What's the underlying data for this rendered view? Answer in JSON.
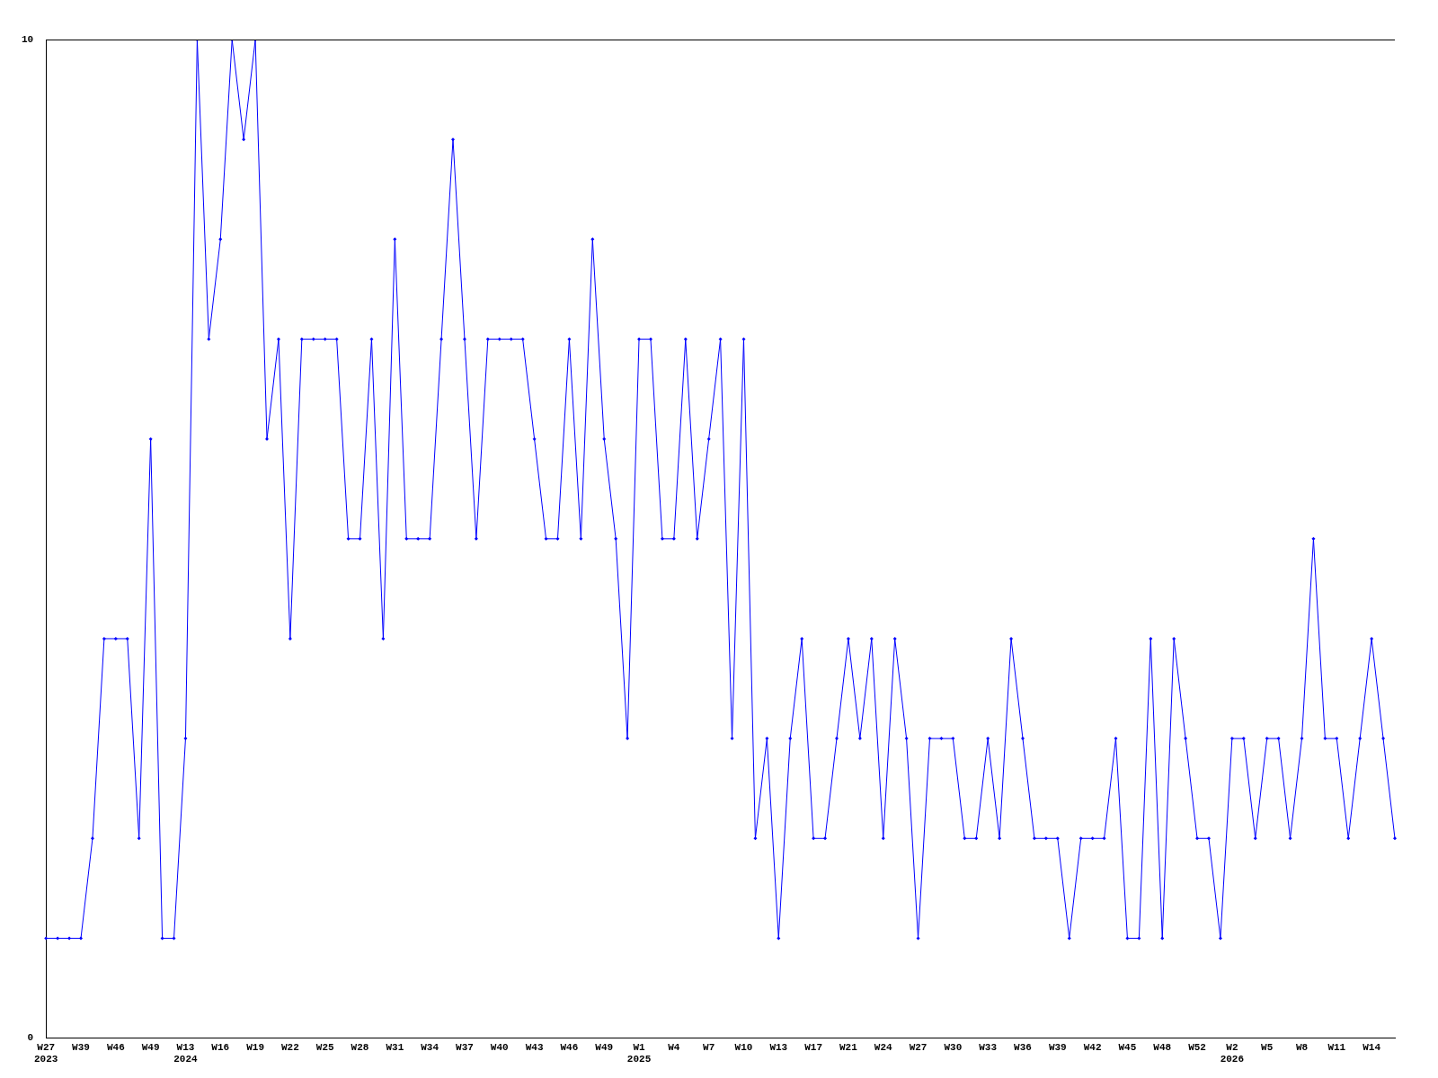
{
  "chart_data": {
    "type": "line",
    "categories": [
      "W27\n2023",
      null,
      null,
      "W39",
      null,
      null,
      "W46",
      null,
      null,
      "W49",
      null,
      null,
      "W13\n2024",
      null,
      null,
      "W16",
      null,
      null,
      "W19",
      null,
      null,
      "W22",
      null,
      null,
      "W25",
      null,
      null,
      "W28",
      null,
      null,
      "W31",
      null,
      null,
      "W34",
      null,
      null,
      "W37",
      null,
      null,
      "W40",
      null,
      null,
      "W43",
      null,
      null,
      "W46",
      null,
      null,
      "W49",
      null,
      null,
      "W1\n2025",
      null,
      null,
      "W4",
      null,
      null,
      "W7",
      null,
      null,
      "W10",
      null,
      null,
      "W13",
      null,
      null,
      "W17",
      null,
      null,
      "W21",
      null,
      null,
      "W24",
      null,
      null,
      "W27",
      null,
      null,
      "W30",
      null,
      null,
      "W33",
      null,
      null,
      "W36",
      null,
      null,
      "W39",
      null,
      null,
      "W42",
      null,
      null,
      "W45",
      null,
      null,
      "W48",
      null,
      null,
      "W52",
      null,
      null,
      "W2\n2026",
      null,
      null,
      "W5",
      null,
      null,
      "W8",
      null,
      null,
      "W11",
      null,
      null,
      "W14",
      null,
      null
    ],
    "series": [
      {
        "color": "#0000ff",
        "values": [
          1,
          1,
          1,
          1,
          2,
          4,
          4,
          4,
          2,
          6,
          1,
          1,
          3,
          10,
          7,
          8,
          10,
          9,
          10,
          6,
          7,
          4,
          7,
          7,
          7,
          7,
          5,
          5,
          7,
          4,
          8,
          5,
          5,
          5,
          7,
          9,
          7,
          5,
          7,
          7,
          7,
          7,
          6,
          5,
          5,
          7,
          5,
          8,
          6,
          5,
          3,
          7,
          7,
          5,
          5,
          7,
          5,
          6,
          7,
          3,
          7,
          2,
          3,
          1,
          3,
          4,
          2,
          2,
          3,
          4,
          3,
          4,
          2,
          4,
          3,
          1,
          3,
          3,
          3,
          2,
          2,
          3,
          2,
          4,
          3,
          2,
          2,
          2,
          1,
          2,
          2,
          2,
          3,
          1,
          1,
          4,
          1,
          4,
          3,
          2,
          2,
          1,
          3,
          3,
          2,
          3,
          3,
          2,
          3,
          5,
          3,
          3,
          2,
          3,
          4,
          3,
          2
        ]
      }
    ],
    "ylim": [
      0,
      10
    ],
    "yticks": [
      0,
      10
    ],
    "legend": false,
    "marker": "diamond",
    "line_style": "solid"
  }
}
